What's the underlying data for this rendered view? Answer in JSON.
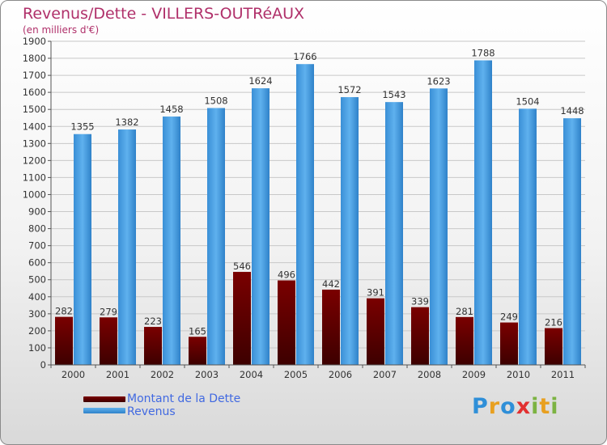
{
  "chart_data": {
    "type": "bar",
    "title": "Revenus/Dette - VILLERS-OUTRéAUX",
    "subtitle": "(en milliers d'€)",
    "categories": [
      "2000",
      "2001",
      "2002",
      "2003",
      "2004",
      "2005",
      "2006",
      "2007",
      "2008",
      "2009",
      "2010",
      "2011"
    ],
    "series": [
      {
        "name": "Montant de la Dette",
        "values": [
          282,
          279,
          223,
          165,
          546,
          496,
          442,
          391,
          339,
          281,
          249,
          216
        ]
      },
      {
        "name": "Revenus",
        "values": [
          1355,
          1382,
          1458,
          1508,
          1624,
          1766,
          1572,
          1543,
          1623,
          1788,
          1504,
          1448
        ]
      }
    ],
    "ylim": [
      0,
      1900
    ],
    "yticks": [
      0,
      100,
      200,
      300,
      400,
      500,
      600,
      700,
      800,
      900,
      1000,
      1100,
      1200,
      1300,
      1400,
      1500,
      1600,
      1700,
      1800,
      1900
    ],
    "grid": true,
    "legend": "bottom-left"
  },
  "colors": {
    "debt_top": "#7a0000",
    "debt_bottom": "#3d0000",
    "revenue_top": "#5fb1ee",
    "revenue_bottom": "#2f82c9",
    "title": "#b0306a",
    "legend_text": "#4169e1"
  },
  "logo": {
    "letters": [
      "P",
      "r",
      "o",
      "x",
      "i",
      "t",
      "i"
    ],
    "colors": [
      "#2f8fd8",
      "#e8a020",
      "#2f8fd8",
      "#e23030",
      "#7cb342",
      "#e8a020",
      "#7cb342"
    ]
  }
}
